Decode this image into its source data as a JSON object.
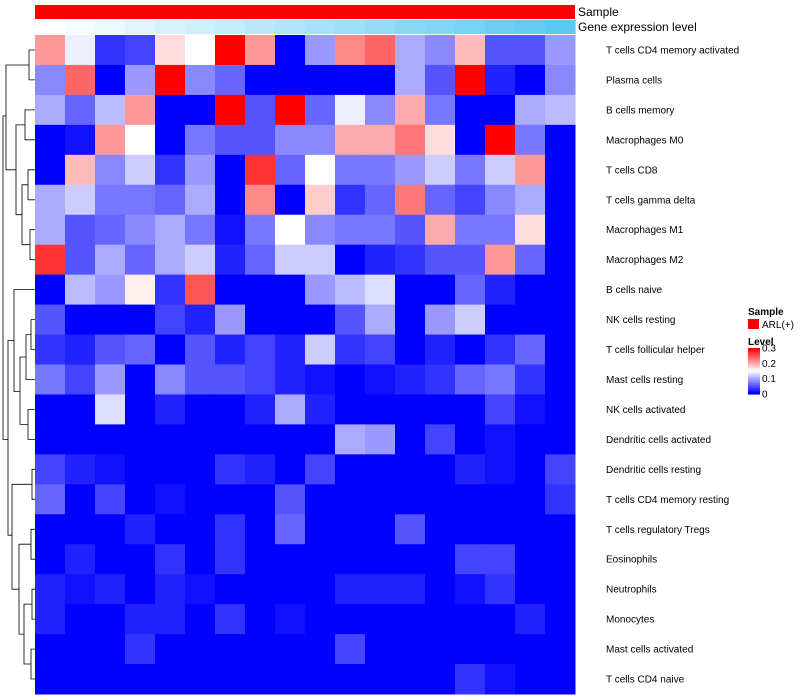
{
  "chart_data": {
    "type": "heatmap",
    "title": "",
    "annotation_tracks": [
      {
        "name": "Sample",
        "kind": "categorical",
        "color": "#ff0000"
      },
      {
        "name": "Gene expression level",
        "kind": "gradient",
        "low_color": "#ffffff",
        "high_color": "#5bc8f0"
      }
    ],
    "rows": [
      "T cells CD4 memory activated",
      "Plasma cells",
      "B cells memory",
      "Macrophages M0",
      "T cells CD8",
      "T cells gamma delta",
      "Macrophages M1",
      "Macrophages M2",
      "B cells naive",
      "NK cells resting",
      "T cells follicular helper",
      "Mast cells resting",
      "NK cells activated",
      "Dendritic cells activated",
      "Dendritic cells resting",
      "T cells CD4 memory resting",
      "T cells regulatory  Tregs",
      "Eosinophils",
      "Neutrophils",
      "Monocytes",
      "Mast cells activated",
      "T cells CD4 naive"
    ],
    "n_columns": 18,
    "values": [
      [
        0.21,
        0.14,
        0.03,
        0.04,
        0.17,
        0.15,
        0.3,
        0.21,
        0.0,
        0.09,
        0.22,
        0.24,
        0.1,
        0.08,
        0.19,
        0.05,
        0.05,
        0.09
      ],
      [
        0.08,
        0.24,
        0.0,
        0.09,
        0.3,
        0.08,
        0.06,
        0.0,
        0.0,
        0.0,
        0.0,
        0.0,
        0.1,
        0.05,
        0.3,
        0.02,
        0.0,
        0.08
      ],
      [
        0.1,
        0.06,
        0.11,
        0.21,
        0.0,
        0.0,
        0.3,
        0.05,
        0.3,
        0.06,
        0.14,
        0.08,
        0.2,
        0.07,
        0.0,
        0.0,
        0.1,
        0.11
      ],
      [
        0.0,
        0.01,
        0.21,
        0.15,
        0.0,
        0.07,
        0.05,
        0.05,
        0.08,
        0.08,
        0.2,
        0.2,
        0.23,
        0.17,
        0.0,
        0.3,
        0.07,
        0.0
      ],
      [
        0.0,
        0.19,
        0.08,
        0.12,
        0.03,
        0.09,
        0.0,
        0.27,
        0.06,
        0.15,
        0.07,
        0.07,
        0.09,
        0.12,
        0.07,
        0.12,
        0.21,
        0.0
      ],
      [
        0.1,
        0.12,
        0.07,
        0.07,
        0.06,
        0.1,
        0.0,
        0.22,
        0.0,
        0.18,
        0.03,
        0.06,
        0.23,
        0.06,
        0.04,
        0.08,
        0.1,
        0.0
      ],
      [
        0.1,
        0.05,
        0.06,
        0.08,
        0.1,
        0.07,
        0.01,
        0.07,
        0.15,
        0.08,
        0.07,
        0.07,
        0.05,
        0.2,
        0.07,
        0.07,
        0.17,
        0.0
      ],
      [
        0.27,
        0.05,
        0.1,
        0.06,
        0.1,
        0.12,
        0.02,
        0.06,
        0.12,
        0.12,
        0.0,
        0.02,
        0.03,
        0.05,
        0.05,
        0.21,
        0.06,
        0.0
      ],
      [
        0.0,
        0.11,
        0.09,
        0.16,
        0.03,
        0.25,
        0.0,
        0.0,
        0.0,
        0.09,
        0.11,
        0.13,
        0.0,
        0.0,
        0.06,
        0.02,
        0.0,
        0.0
      ],
      [
        0.05,
        0.0,
        0.0,
        0.0,
        0.04,
        0.02,
        0.09,
        0.0,
        0.0,
        0.0,
        0.05,
        0.1,
        0.0,
        0.09,
        0.12,
        0.0,
        0.0,
        0.0
      ],
      [
        0.03,
        0.02,
        0.05,
        0.06,
        0.0,
        0.05,
        0.02,
        0.04,
        0.02,
        0.12,
        0.03,
        0.04,
        0.0,
        0.02,
        0.0,
        0.03,
        0.06,
        0.0
      ],
      [
        0.07,
        0.04,
        0.09,
        0.0,
        0.08,
        0.05,
        0.05,
        0.04,
        0.02,
        0.01,
        0.0,
        0.01,
        0.02,
        0.03,
        0.06,
        0.07,
        0.03,
        0.0
      ],
      [
        0.0,
        0.0,
        0.13,
        0.0,
        0.02,
        0.0,
        0.0,
        0.02,
        0.1,
        0.02,
        0.0,
        0.0,
        0.0,
        0.0,
        0.0,
        0.04,
        0.01,
        0.0
      ],
      [
        0.0,
        0.0,
        0.0,
        0.0,
        0.0,
        0.0,
        0.0,
        0.0,
        0.0,
        0.0,
        0.1,
        0.09,
        0.0,
        0.04,
        0.0,
        0.01,
        0.0,
        0.0
      ],
      [
        0.04,
        0.02,
        0.01,
        0.0,
        0.0,
        0.0,
        0.03,
        0.02,
        0.0,
        0.04,
        0.0,
        0.0,
        0.0,
        0.0,
        0.02,
        0.01,
        0.0,
        0.04
      ],
      [
        0.06,
        0.0,
        0.04,
        0.0,
        0.01,
        0.0,
        0.0,
        0.0,
        0.05,
        0.0,
        0.0,
        0.0,
        0.0,
        0.0,
        0.0,
        0.0,
        0.0,
        0.03
      ],
      [
        0.0,
        0.0,
        0.0,
        0.02,
        0.0,
        0.0,
        0.03,
        0.0,
        0.06,
        0.0,
        0.0,
        0.0,
        0.05,
        0.0,
        0.0,
        0.0,
        0.0,
        0.0
      ],
      [
        0.0,
        0.02,
        0.0,
        0.0,
        0.03,
        0.0,
        0.03,
        0.0,
        0.0,
        0.0,
        0.0,
        0.0,
        0.0,
        0.0,
        0.04,
        0.04,
        0.0,
        0.0
      ],
      [
        0.02,
        0.01,
        0.02,
        0.0,
        0.02,
        0.01,
        0.0,
        0.0,
        0.0,
        0.0,
        0.02,
        0.02,
        0.02,
        0.0,
        0.01,
        0.03,
        0.0,
        0.0
      ],
      [
        0.02,
        0.0,
        0.0,
        0.02,
        0.02,
        0.0,
        0.03,
        0.0,
        0.01,
        0.0,
        0.0,
        0.0,
        0.0,
        0.0,
        0.0,
        0.0,
        0.02,
        0.0
      ],
      [
        0.0,
        0.0,
        0.0,
        0.03,
        0.0,
        0.0,
        0.0,
        0.0,
        0.0,
        0.0,
        0.04,
        0.0,
        0.0,
        0.0,
        0.0,
        0.0,
        0.0,
        0.0
      ],
      [
        0.0,
        0.0,
        0.0,
        0.0,
        0.0,
        0.0,
        0.0,
        0.0,
        0.0,
        0.0,
        0.0,
        0.0,
        0.0,
        0.0,
        0.03,
        0.01,
        0.0,
        0.0
      ]
    ],
    "color_scale": {
      "min": 0,
      "max": 0.3,
      "low": "#0000ff",
      "mid": "#ffffff",
      "high": "#ff0000",
      "mid_value": 0.15
    },
    "row_dendrogram": true,
    "legend": {
      "position": "right",
      "sample_title": "Sample",
      "sample_entries": [
        {
          "label": "ARL(+)",
          "color": "#ff0000"
        }
      ],
      "level_title": "Level",
      "level_ticks": [
        "0.3",
        "0.2",
        "0.1",
        "0"
      ]
    }
  }
}
